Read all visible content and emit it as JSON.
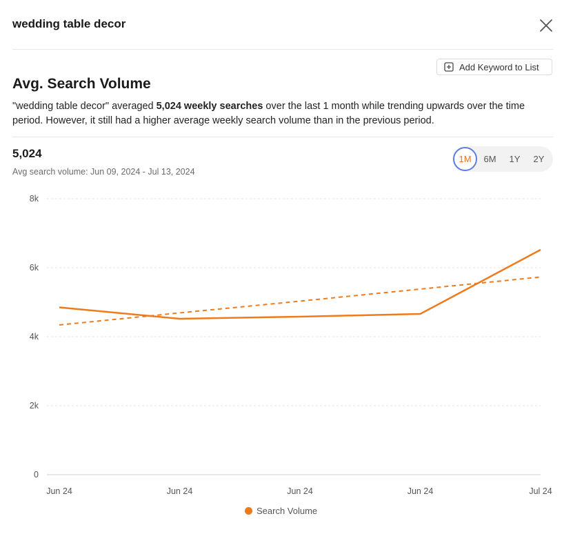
{
  "header": {
    "title": "wedding table decor"
  },
  "actions": {
    "add_keyword_label": "Add Keyword to List"
  },
  "section": {
    "title": "Avg. Search Volume",
    "desc_part1": "\"wedding table decor\" averaged ",
    "desc_bold": "5,024 weekly searches",
    "desc_part2": " over the last 1 month while trending upwards over the time period. However, it still had a higher average weekly search volume than in the previous period."
  },
  "summary": {
    "value": "5,024",
    "range": "Avg search volume: Jun 09, 2024 - Jul 13, 2024"
  },
  "periods": [
    {
      "label": "1M",
      "active": true
    },
    {
      "label": "6M",
      "active": false
    },
    {
      "label": "1Y",
      "active": false
    },
    {
      "label": "2Y",
      "active": false
    }
  ],
  "colors": {
    "accent": "#ee7b1b",
    "active_ring": "#5b7ee5",
    "grid": "#e3e3e3"
  },
  "chart_data": {
    "type": "line",
    "title": "",
    "categories": [
      "Jun 24",
      "Jun 24",
      "Jun 24",
      "Jun 24",
      "Jul 24"
    ],
    "series": [
      {
        "name": "Search Volume",
        "values": [
          4850,
          4520,
          4580,
          4660,
          6520
        ],
        "style": "solid"
      },
      {
        "name": "Trend",
        "values": [
          4340,
          4690,
          5030,
          5380,
          5730
        ],
        "style": "dashed"
      }
    ],
    "y_ticks": [
      {
        "value": 0,
        "label": "0"
      },
      {
        "value": 2000,
        "label": "2k"
      },
      {
        "value": 4000,
        "label": "4k"
      },
      {
        "value": 6000,
        "label": "6k"
      },
      {
        "value": 8000,
        "label": "8k"
      }
    ],
    "ylim": [
      0,
      8000
    ],
    "grid": true,
    "legend": "Search Volume",
    "legend_position": "bottom-center"
  }
}
